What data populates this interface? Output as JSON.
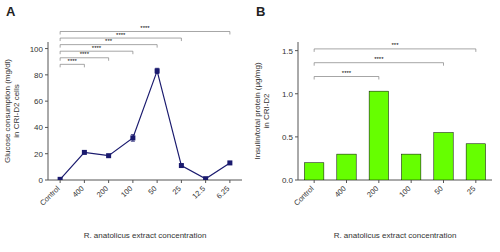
{
  "chart_data": [
    {
      "type": "line",
      "title": "A",
      "categories": [
        "Control",
        "400",
        "200",
        "100",
        "50",
        "25",
        "12.5",
        "6.25"
      ],
      "values": [
        0.5,
        21.0,
        18.5,
        32.0,
        83.0,
        11.0,
        1.0,
        13.0
      ],
      "errors": [
        0.3,
        1.0,
        0.8,
        2.5,
        2.0,
        0.8,
        0.3,
        0.8
      ],
      "color": "#1a1a6e",
      "marker": "square",
      "ylabel": "Glucose consumption (mg/dl)\nin CRI-D2 cells",
      "xlabel": "R. anatolicus extract concentration",
      "ylim": [
        0,
        105
      ],
      "yticks": [
        0,
        20,
        40,
        60,
        80,
        100
      ],
      "grid": false,
      "brackets": [
        {
          "x1": "Control",
          "x2": "400",
          "y": 88,
          "label": "****"
        },
        {
          "x1": "Control",
          "x2": "200",
          "y": 93,
          "label": "****"
        },
        {
          "x1": "Control",
          "x2": "100",
          "y": 98,
          "label": "****"
        },
        {
          "x1": "Control",
          "x2": "50",
          "y": 103,
          "label": "***"
        },
        {
          "x1": "Control",
          "x2": "25",
          "y": 108,
          "label": "****"
        },
        {
          "x1": "Control",
          "x2": "6.25",
          "y": 113,
          "label": "****"
        }
      ]
    },
    {
      "type": "bar",
      "title": "B",
      "categories": [
        "Control",
        "400",
        "200",
        "100",
        "50",
        "25"
      ],
      "values": [
        0.2,
        0.3,
        1.03,
        0.3,
        0.55,
        0.42
      ],
      "color": "#66ff00",
      "ylabel": "Insulin/total protein (µg/mg)\nin CRI-D2",
      "xlabel": "R. anatolicus extract concentration",
      "ylim": [
        0,
        1.6
      ],
      "yticks": [
        {
          "value": 0,
          "label": "0.0"
        },
        0.5,
        {
          "value": 1,
          "label": "1.0"
        },
        1.5
      ],
      "grid": false,
      "brackets": [
        {
          "x1": "Control",
          "x2": "200",
          "y": 1.2,
          "label": "****"
        },
        {
          "x1": "Control",
          "x2": "50",
          "y": 1.36,
          "label": "****"
        },
        {
          "x1": "Control",
          "x2": "25",
          "y": 1.52,
          "label": "***"
        }
      ]
    }
  ]
}
